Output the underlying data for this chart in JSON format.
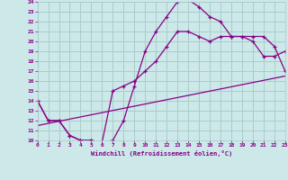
{
  "xlabel": "Windchill (Refroidissement éolien,°C)",
  "bg_color": "#cce8e8",
  "grid_color": "#aacccc",
  "line_color": "#880088",
  "xmin": 0,
  "xmax": 23,
  "ymin": 10,
  "ymax": 24,
  "line1_x": [
    0,
    1,
    2,
    3,
    4,
    5,
    6,
    7,
    8,
    9,
    10,
    11,
    12,
    13,
    14,
    15,
    16,
    17,
    18,
    19,
    20,
    21,
    22,
    23
  ],
  "line1_y": [
    14.0,
    12.0,
    12.0,
    10.5,
    10.0,
    10.0,
    9.8,
    10.0,
    12.0,
    15.5,
    19.0,
    21.0,
    22.5,
    24.0,
    24.2,
    23.5,
    22.5,
    22.0,
    20.5,
    20.5,
    20.0,
    18.5,
    18.5,
    19.0
  ],
  "line2_x": [
    0,
    1,
    2,
    3,
    4,
    5,
    6,
    7,
    8,
    9,
    10,
    11,
    12,
    13,
    14,
    15,
    16,
    17,
    18,
    19,
    20,
    21,
    22,
    23
  ],
  "line2_y": [
    14.0,
    12.0,
    12.0,
    10.5,
    10.0,
    10.0,
    9.8,
    15.0,
    15.5,
    16.0,
    17.0,
    18.0,
    19.5,
    21.0,
    21.0,
    20.5,
    20.0,
    20.5,
    20.5,
    20.5,
    20.5,
    20.5,
    19.5,
    17.0
  ],
  "line3_x": [
    0,
    23
  ],
  "line3_y": [
    11.5,
    16.5
  ]
}
